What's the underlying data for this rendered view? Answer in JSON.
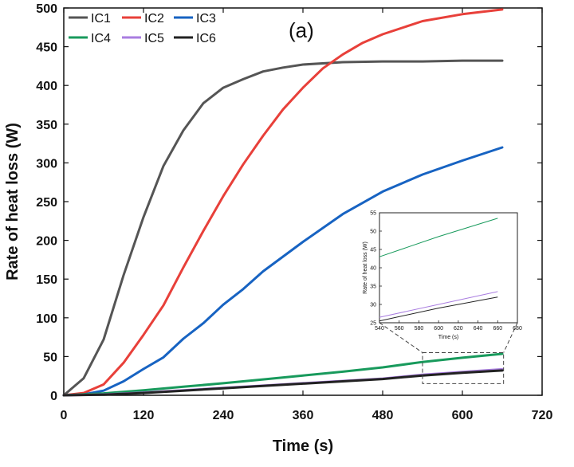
{
  "chart_data": {
    "type": "line",
    "panel_label": "(a)",
    "xlabel": "Time (s)",
    "ylabel": "Rate of heat loss (W)",
    "xlim": [
      0,
      720
    ],
    "ylim": [
      0,
      500
    ],
    "xticks": [
      0,
      120,
      240,
      360,
      480,
      600,
      720
    ],
    "yticks": [
      0,
      50,
      100,
      150,
      200,
      250,
      300,
      350,
      400,
      450,
      500
    ],
    "legend": [
      "IC1",
      "IC2",
      "IC3",
      "IC4",
      "IC5",
      "IC6"
    ],
    "series": [
      {
        "name": "IC1",
        "color": "#555555",
        "x": [
          0,
          30,
          60,
          90,
          120,
          150,
          180,
          210,
          240,
          270,
          300,
          330,
          360,
          420,
          480,
          540,
          600,
          660
        ],
        "y": [
          0,
          22,
          72,
          155,
          230,
          296,
          342,
          377,
          397,
          408,
          418,
          423,
          427,
          430,
          431,
          431,
          432,
          432
        ]
      },
      {
        "name": "IC2",
        "color": "#e8403a",
        "x": [
          0,
          30,
          60,
          90,
          120,
          150,
          180,
          210,
          240,
          270,
          300,
          330,
          360,
          390,
          420,
          450,
          480,
          540,
          600,
          660
        ],
        "y": [
          0,
          3,
          14,
          42,
          78,
          116,
          165,
          212,
          257,
          298,
          335,
          369,
          397,
          422,
          440,
          455,
          466,
          483,
          492,
          498
        ]
      },
      {
        "name": "IC3",
        "color": "#1763c2",
        "x": [
          0,
          30,
          60,
          90,
          120,
          150,
          180,
          210,
          240,
          270,
          300,
          330,
          360,
          420,
          480,
          540,
          600,
          660
        ],
        "y": [
          0,
          1,
          6,
          18,
          34,
          49,
          73,
          93,
          117,
          137,
          160,
          179,
          198,
          234,
          263,
          285,
          303,
          320
        ]
      },
      {
        "name": "IC4",
        "color": "#189a5c",
        "x": [
          0,
          60,
          120,
          180,
          240,
          300,
          360,
          420,
          480,
          540,
          600,
          660
        ],
        "y": [
          0,
          2.5,
          6.5,
          11,
          15.5,
          20.5,
          25.5,
          30.5,
          36,
          43,
          48.5,
          53.5
        ]
      },
      {
        "name": "IC5",
        "color": "#a97de0",
        "x": [
          0,
          60,
          120,
          180,
          240,
          300,
          360,
          420,
          480,
          540,
          600,
          660
        ],
        "y": [
          0,
          1,
          3.5,
          6.5,
          9.5,
          12.5,
          15.5,
          18.5,
          21.5,
          26.5,
          30,
          33.5
        ]
      },
      {
        "name": "IC6",
        "color": "#222222",
        "x": [
          0,
          60,
          120,
          180,
          240,
          300,
          360,
          420,
          480,
          540,
          600,
          660
        ],
        "y": [
          0,
          0.8,
          3,
          6,
          9,
          12,
          15,
          18,
          21,
          25.5,
          29,
          32
        ]
      }
    ],
    "inset": {
      "xlabel": "Time (s)",
      "ylabel": "Rate of heat loss (W)",
      "xlim": [
        540,
        680
      ],
      "ylim": [
        25,
        55
      ],
      "xticks": [
        540,
        560,
        580,
        600,
        620,
        640,
        660,
        680
      ],
      "yticks": [
        25,
        30,
        35,
        40,
        45,
        50,
        55
      ]
    }
  }
}
